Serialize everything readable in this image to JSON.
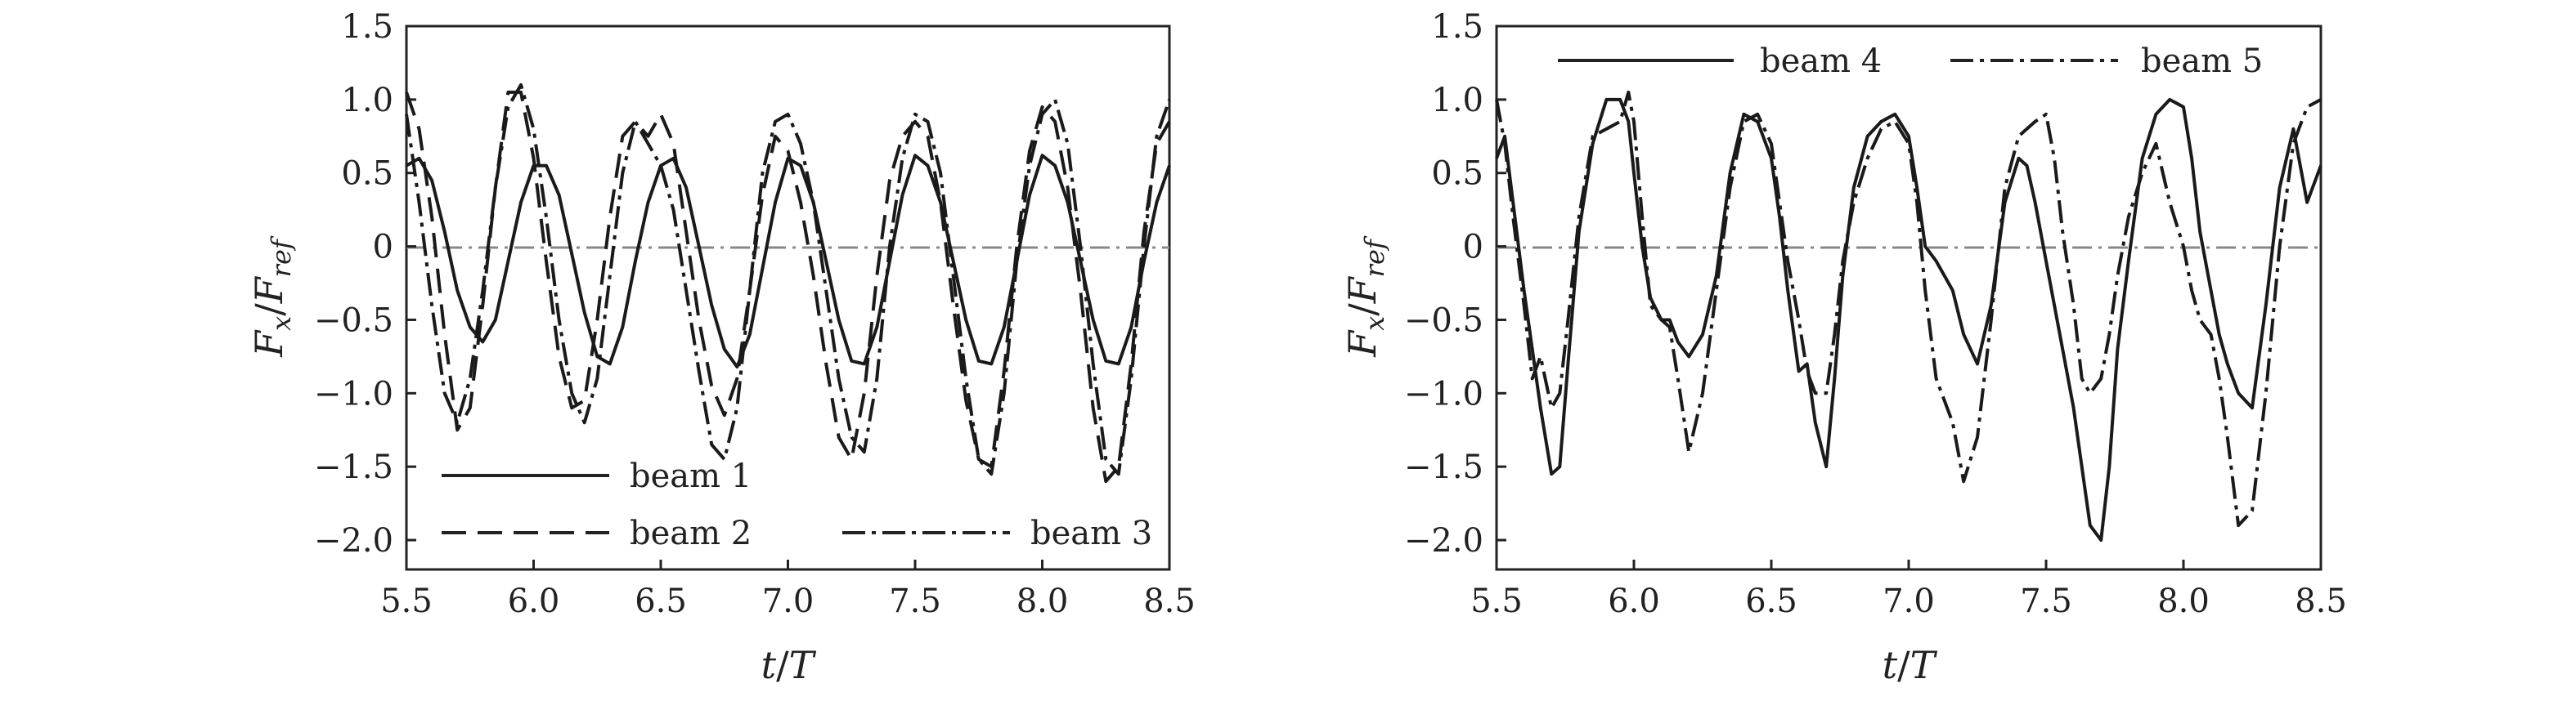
{
  "chart_data": [
    {
      "type": "line",
      "xlim": [
        5.5,
        8.5
      ],
      "ylim": [
        -2.2,
        1.5
      ],
      "x_ticks": [
        "5.5",
        "6.0",
        "6.5",
        "7.0",
        "7.5",
        "8.0",
        "8.5"
      ],
      "y_ticks": [
        "1.5",
        "1.0",
        "0.5",
        "0",
        "−0.5",
        "−1.0",
        "−1.5",
        "−2.0"
      ],
      "xlabel": {
        "main": "t",
        "sep": "/",
        "den": "T"
      },
      "ylabel": {
        "num": "F",
        "num_sub": "x",
        "sep": "/",
        "den": "F",
        "den_sub": "ref"
      },
      "legend_placement": "bottom",
      "reference_line": 0,
      "series": [
        {
          "name": "beam 1",
          "style": "solid",
          "x": [
            5.5,
            5.55,
            5.6,
            5.65,
            5.7,
            5.75,
            5.8,
            5.85,
            5.9,
            5.95,
            6.0,
            6.05,
            6.1,
            6.15,
            6.2,
            6.25,
            6.3,
            6.35,
            6.4,
            6.45,
            6.5,
            6.55,
            6.6,
            6.65,
            6.7,
            6.75,
            6.8,
            6.85,
            6.9,
            6.95,
            7.0,
            7.05,
            7.1,
            7.15,
            7.2,
            7.25,
            7.3,
            7.35,
            7.4,
            7.45,
            7.5,
            7.55,
            7.6,
            7.65,
            7.7,
            7.75,
            7.8,
            7.85,
            7.9,
            7.95,
            8.0,
            8.05,
            8.1,
            8.15,
            8.2,
            8.25,
            8.3,
            8.35,
            8.4,
            8.45,
            8.5
          ],
          "y": [
            0.55,
            0.6,
            0.45,
            0.1,
            -0.3,
            -0.55,
            -0.65,
            -0.5,
            -0.1,
            0.3,
            0.55,
            0.55,
            0.35,
            -0.05,
            -0.45,
            -0.75,
            -0.8,
            -0.55,
            -0.1,
            0.3,
            0.55,
            0.6,
            0.4,
            0.0,
            -0.4,
            -0.7,
            -0.82,
            -0.6,
            -0.15,
            0.3,
            0.6,
            0.55,
            0.3,
            -0.1,
            -0.5,
            -0.78,
            -0.8,
            -0.55,
            -0.1,
            0.35,
            0.62,
            0.55,
            0.3,
            -0.1,
            -0.5,
            -0.78,
            -0.8,
            -0.55,
            -0.1,
            0.35,
            0.62,
            0.55,
            0.3,
            -0.1,
            -0.5,
            -0.78,
            -0.8,
            -0.55,
            -0.1,
            0.3,
            0.55
          ]
        },
        {
          "name": "beam 2",
          "style": "dashed",
          "x": [
            5.5,
            5.55,
            5.6,
            5.65,
            5.7,
            5.75,
            5.8,
            5.85,
            5.9,
            5.95,
            6.0,
            6.05,
            6.1,
            6.15,
            6.2,
            6.25,
            6.3,
            6.35,
            6.4,
            6.45,
            6.5,
            6.55,
            6.6,
            6.65,
            6.7,
            6.75,
            6.8,
            6.85,
            6.9,
            6.95,
            7.0,
            7.05,
            7.1,
            7.15,
            7.2,
            7.25,
            7.3,
            7.35,
            7.4,
            7.45,
            7.5,
            7.55,
            7.6,
            7.65,
            7.7,
            7.75,
            7.8,
            7.85,
            7.9,
            7.95,
            8.0,
            8.05,
            8.1,
            8.15,
            8.2,
            8.25,
            8.3,
            8.35,
            8.4,
            8.45,
            8.5
          ],
          "y": [
            1.05,
            0.8,
            0.2,
            -0.6,
            -1.25,
            -1.1,
            -0.4,
            0.4,
            1.05,
            1.05,
            0.6,
            -0.1,
            -0.75,
            -1.1,
            -1.05,
            -0.5,
            0.2,
            0.75,
            0.85,
            0.75,
            0.9,
            0.7,
            0.1,
            -0.5,
            -0.95,
            -1.15,
            -0.9,
            -0.3,
            0.35,
            0.75,
            0.65,
            0.3,
            -0.2,
            -0.8,
            -1.3,
            -1.45,
            -1.0,
            -0.2,
            0.45,
            0.75,
            0.85,
            0.75,
            0.3,
            -0.4,
            -1.05,
            -1.45,
            -1.5,
            -0.85,
            0.0,
            0.65,
            0.95,
            0.85,
            0.4,
            -0.3,
            -1.1,
            -1.6,
            -1.5,
            -0.8,
            0.1,
            0.7,
            0.85
          ]
        },
        {
          "name": "beam 3",
          "style": "dashdot",
          "x": [
            5.5,
            5.55,
            5.6,
            5.65,
            5.7,
            5.75,
            5.8,
            5.85,
            5.9,
            5.95,
            6.0,
            6.05,
            6.1,
            6.15,
            6.2,
            6.25,
            6.3,
            6.35,
            6.4,
            6.45,
            6.5,
            6.55,
            6.6,
            6.65,
            6.7,
            6.75,
            6.8,
            6.85,
            6.9,
            6.95,
            7.0,
            7.05,
            7.1,
            7.15,
            7.2,
            7.25,
            7.3,
            7.35,
            7.4,
            7.45,
            7.5,
            7.55,
            7.6,
            7.65,
            7.7,
            7.75,
            7.8,
            7.85,
            7.9,
            7.95,
            8.0,
            8.05,
            8.1,
            8.15,
            8.2,
            8.25,
            8.3,
            8.35,
            8.4,
            8.45,
            8.5
          ],
          "y": [
            0.9,
            0.3,
            -0.4,
            -1.0,
            -1.2,
            -0.9,
            -0.3,
            0.4,
            0.95,
            1.1,
            0.8,
            0.2,
            -0.5,
            -1.0,
            -1.2,
            -0.9,
            -0.2,
            0.5,
            0.85,
            0.7,
            0.55,
            0.25,
            -0.3,
            -0.85,
            -1.35,
            -1.45,
            -1.1,
            -0.3,
            0.5,
            0.85,
            0.9,
            0.7,
            0.3,
            -0.3,
            -0.9,
            -1.3,
            -1.4,
            -0.9,
            0.0,
            0.6,
            0.9,
            0.85,
            0.5,
            -0.2,
            -0.9,
            -1.45,
            -1.55,
            -1.0,
            -0.1,
            0.55,
            0.9,
            1.0,
            0.7,
            0.0,
            -0.8,
            -1.45,
            -1.55,
            -0.9,
            0.0,
            0.75,
            1.0
          ]
        }
      ]
    },
    {
      "type": "line",
      "xlim": [
        5.5,
        8.5
      ],
      "ylim": [
        -2.2,
        1.5
      ],
      "x_ticks": [
        "5.5",
        "6.0",
        "6.5",
        "7.0",
        "7.5",
        "8.0",
        "8.5"
      ],
      "y_ticks": [
        "1.5",
        "1.0",
        "0.5",
        "0",
        "−0.5",
        "−1.0",
        "−1.5",
        "−2.0"
      ],
      "xlabel": {
        "main": "t",
        "sep": "/",
        "den": "T"
      },
      "ylabel": {
        "num": "F",
        "num_sub": "x",
        "sep": "/",
        "den": "F",
        "den_sub": "ref"
      },
      "legend_placement": "top",
      "reference_line": 0,
      "series": [
        {
          "name": "beam 4",
          "style": "solid",
          "x": [
            5.5,
            5.53,
            5.56,
            5.6,
            5.63,
            5.66,
            5.7,
            5.73,
            5.76,
            5.8,
            5.85,
            5.9,
            5.95,
            5.98,
            6.0,
            6.03,
            6.06,
            6.1,
            6.13,
            6.16,
            6.2,
            6.25,
            6.3,
            6.35,
            6.4,
            6.45,
            6.5,
            6.53,
            6.56,
            6.6,
            6.63,
            6.66,
            6.7,
            6.73,
            6.76,
            6.8,
            6.85,
            6.9,
            6.95,
            7.0,
            7.03,
            7.06,
            7.1,
            7.13,
            7.16,
            7.2,
            7.25,
            7.3,
            7.35,
            7.4,
            7.43,
            7.46,
            7.5,
            7.53,
            7.56,
            7.6,
            7.63,
            7.66,
            7.7,
            7.73,
            7.76,
            7.8,
            7.85,
            7.9,
            7.95,
            8.0,
            8.03,
            8.06,
            8.1,
            8.13,
            8.16,
            8.2,
            8.25,
            8.3,
            8.35,
            8.4,
            8.45,
            8.5
          ],
          "y": [
            0.6,
            0.75,
            0.3,
            -0.3,
            -0.7,
            -1.1,
            -1.55,
            -1.5,
            -0.8,
            0.1,
            0.7,
            1.0,
            1.0,
            0.85,
            0.5,
            0.0,
            -0.35,
            -0.5,
            -0.5,
            -0.65,
            -0.75,
            -0.6,
            -0.2,
            0.5,
            0.9,
            0.85,
            0.6,
            0.2,
            -0.3,
            -0.85,
            -0.8,
            -1.2,
            -1.5,
            -0.9,
            -0.2,
            0.4,
            0.75,
            0.85,
            0.9,
            0.75,
            0.4,
            0.0,
            -0.1,
            -0.2,
            -0.3,
            -0.6,
            -0.8,
            -0.4,
            0.3,
            0.6,
            0.55,
            0.3,
            -0.1,
            -0.4,
            -0.7,
            -1.1,
            -1.5,
            -1.9,
            -2.0,
            -1.5,
            -0.7,
            -0.1,
            0.6,
            0.9,
            1.0,
            0.95,
            0.6,
            0.1,
            -0.3,
            -0.6,
            -0.8,
            -1.0,
            -1.1,
            -0.4,
            0.4,
            0.8,
            0.3,
            0.55
          ]
        },
        {
          "name": "beam 5",
          "style": "dashdot",
          "x": [
            5.5,
            5.53,
            5.56,
            5.6,
            5.63,
            5.66,
            5.7,
            5.73,
            5.76,
            5.8,
            5.85,
            5.9,
            5.95,
            5.98,
            6.0,
            6.03,
            6.06,
            6.1,
            6.13,
            6.16,
            6.2,
            6.25,
            6.3,
            6.35,
            6.4,
            6.45,
            6.5,
            6.53,
            6.56,
            6.6,
            6.63,
            6.66,
            6.7,
            6.73,
            6.76,
            6.8,
            6.85,
            6.9,
            6.95,
            7.0,
            7.03,
            7.06,
            7.1,
            7.13,
            7.16,
            7.2,
            7.25,
            7.3,
            7.35,
            7.4,
            7.43,
            7.46,
            7.5,
            7.53,
            7.56,
            7.6,
            7.63,
            7.66,
            7.7,
            7.73,
            7.76,
            7.8,
            7.85,
            7.9,
            7.95,
            8.0,
            8.03,
            8.06,
            8.1,
            8.13,
            8.16,
            8.2,
            8.25,
            8.3,
            8.35,
            8.4,
            8.45,
            8.5
          ],
          "y": [
            1.0,
            0.7,
            0.2,
            -0.4,
            -0.9,
            -0.75,
            -1.1,
            -1.0,
            -0.5,
            0.2,
            0.75,
            0.8,
            0.85,
            1.05,
            0.85,
            0.2,
            -0.4,
            -0.5,
            -0.55,
            -0.9,
            -1.4,
            -1.0,
            -0.3,
            0.4,
            0.85,
            0.9,
            0.7,
            0.3,
            -0.1,
            -0.5,
            -0.85,
            -1.0,
            -1.0,
            -0.6,
            -0.1,
            0.3,
            0.6,
            0.8,
            0.85,
            0.7,
            0.3,
            -0.3,
            -0.9,
            -1.05,
            -1.2,
            -1.6,
            -1.3,
            -0.5,
            0.4,
            0.75,
            0.8,
            0.85,
            0.9,
            0.6,
            0.1,
            -0.4,
            -0.9,
            -1.0,
            -0.9,
            -0.6,
            -0.2,
            0.2,
            0.5,
            0.7,
            0.3,
            0.0,
            -0.3,
            -0.5,
            -0.6,
            -0.9,
            -1.3,
            -1.9,
            -1.8,
            -1.0,
            0.0,
            0.7,
            0.95,
            1.0
          ]
        }
      ]
    }
  ]
}
